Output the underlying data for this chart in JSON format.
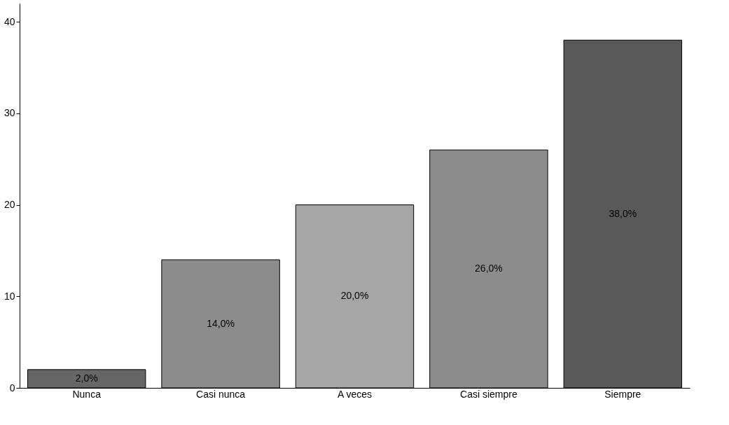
{
  "chart_data": {
    "type": "bar",
    "categories": [
      "Nunca",
      "Casi nunca",
      "A veces",
      "Casi siempre",
      "Siempre"
    ],
    "values": [
      2,
      14,
      20,
      26,
      38
    ],
    "colors": [
      "#666666",
      "#8c8c8c",
      "#a6a6a6",
      "#8c8c8c",
      "#595959"
    ],
    "value_labels": [
      "2,0%",
      "14,0%",
      "20,0%",
      "26,0%",
      "38,0%"
    ],
    "ylim": [
      0,
      42
    ],
    "yticks": [
      0,
      10,
      20,
      30,
      40
    ],
    "grid": false
  }
}
